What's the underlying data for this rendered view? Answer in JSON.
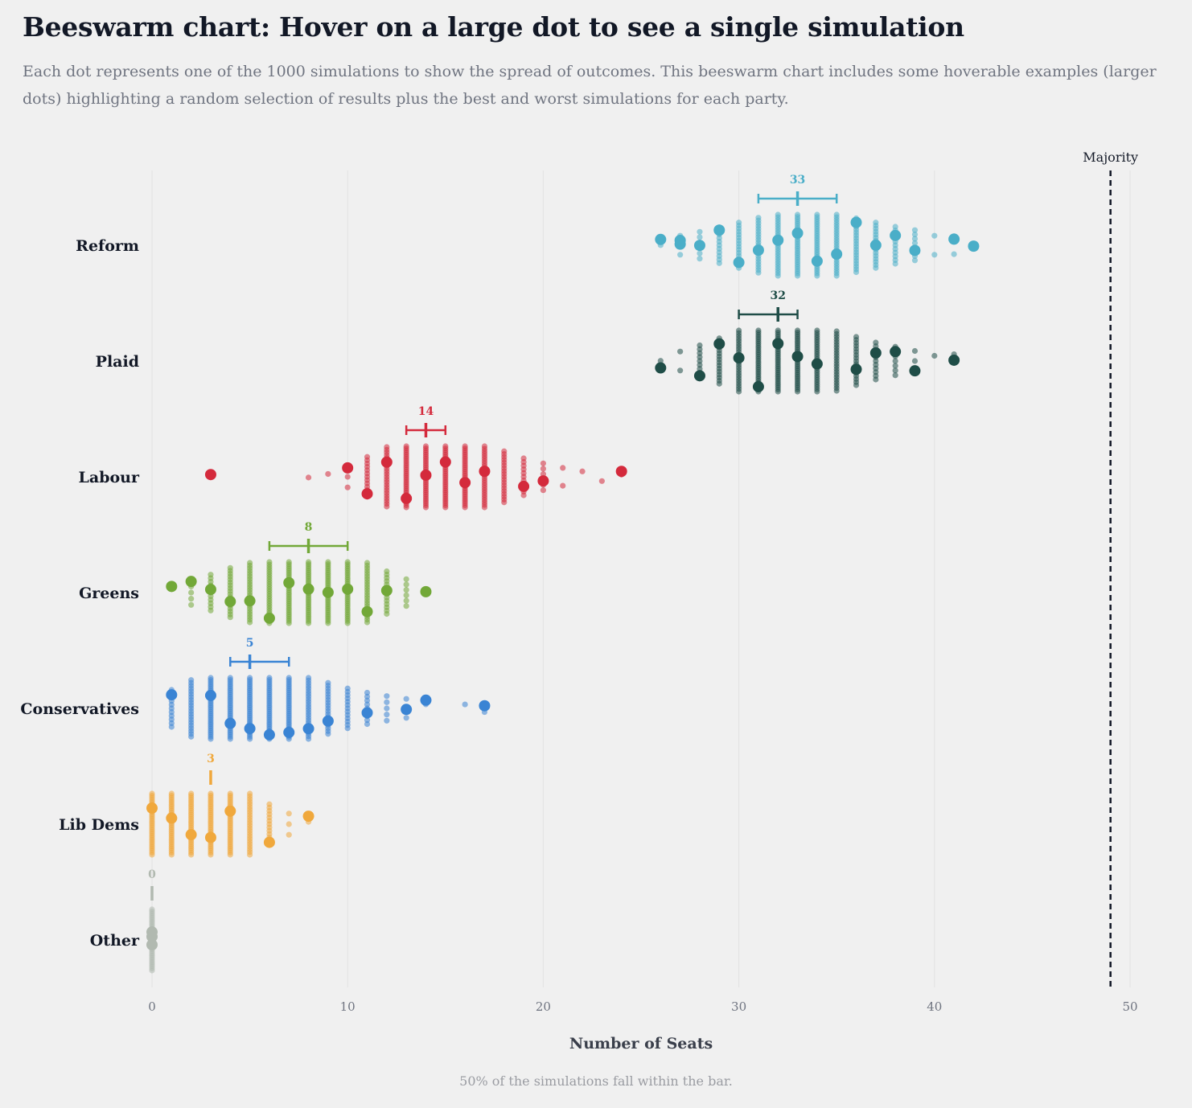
{
  "title": "Beeswarm chart: Hover on a large dot to see a single simulation",
  "subtitle": "Each dot represents one of the 1000 simulations to show the spread of outcomes. This beeswarm chart includes some hoverable examples (larger dots) highlighting a random selection of results plus the best and worst simulations for each party.",
  "footer": "50% of the simulations fall within the bar.",
  "chart_data": {
    "type": "scatter",
    "subtype": "beeswarm",
    "xlabel": "Number of Seats",
    "xlim": [
      0,
      50
    ],
    "xticks": [
      0,
      10,
      20,
      30,
      40,
      50
    ],
    "grid": true,
    "majority": {
      "label": "Majority",
      "value": 49
    },
    "series": [
      {
        "name": "Reform",
        "color": "#4aaec8",
        "median": 33,
        "iqr": [
          31,
          35
        ],
        "counts": {
          "26": 1,
          "27": 8,
          "28": 22,
          "29": 38,
          "30": 55,
          "31": 72,
          "32": 88,
          "33": 98,
          "34": 96,
          "35": 86,
          "36": 70,
          "37": 55,
          "38": 40,
          "39": 28,
          "40": 8,
          "41": 6,
          "42": 1
        },
        "highlights": [
          26,
          27,
          27,
          28,
          29,
          30,
          31,
          32,
          33,
          34,
          35,
          36,
          37,
          38,
          39,
          41,
          42
        ]
      },
      {
        "name": "Plaid",
        "color": "#1f4d47",
        "median": 32,
        "iqr": [
          30,
          33
        ],
        "counts": {
          "26": 2,
          "27": 8,
          "28": 30,
          "29": 55,
          "30": 85,
          "31": 100,
          "32": 110,
          "33": 105,
          "34": 95,
          "35": 80,
          "36": 60,
          "37": 40,
          "38": 25,
          "39": 10,
          "40": 3,
          "41": 1
        },
        "highlights": [
          26,
          28,
          29,
          30,
          31,
          32,
          33,
          34,
          36,
          37,
          38,
          39,
          41
        ]
      },
      {
        "name": "Labour",
        "color": "#d42a3c",
        "median": 14,
        "iqr": [
          13,
          15
        ],
        "counts": {
          "3": 1,
          "8": 1,
          "9": 4,
          "10": 12,
          "11": 45,
          "12": 80,
          "13": 110,
          "14": 130,
          "15": 125,
          "16": 110,
          "17": 90,
          "18": 65,
          "19": 40,
          "20": 22,
          "21": 6,
          "22": 2,
          "23": 2,
          "24": 1
        },
        "highlights": [
          3,
          10,
          11,
          12,
          13,
          14,
          15,
          16,
          17,
          19,
          20,
          24
        ]
      },
      {
        "name": "Greens",
        "color": "#72a838",
        "median": 8,
        "iqr": [
          6,
          10
        ],
        "counts": {
          "1": 1,
          "2": 18,
          "3": 38,
          "4": 62,
          "5": 80,
          "6": 92,
          "7": 100,
          "8": 110,
          "9": 105,
          "10": 100,
          "11": 80,
          "12": 50,
          "13": 22,
          "14": 1
        },
        "highlights": [
          1,
          2,
          3,
          4,
          5,
          6,
          7,
          8,
          9,
          10,
          11,
          12,
          14
        ]
      },
      {
        "name": "Conservatives",
        "color": "#3a84d4",
        "median": 5,
        "iqr": [
          4,
          7
        ],
        "counts": {
          "1": 40,
          "2": 75,
          "3": 105,
          "4": 120,
          "5": 125,
          "6": 120,
          "7": 105,
          "8": 85,
          "9": 65,
          "10": 45,
          "11": 30,
          "12": 18,
          "13": 8,
          "14": 5,
          "16": 1,
          "17": 1
        },
        "highlights": [
          1,
          3,
          4,
          5,
          6,
          7,
          8,
          9,
          11,
          13,
          14,
          17
        ]
      },
      {
        "name": "Lib Dems",
        "color": "#f0a83c",
        "median": 3,
        "iqr": [
          3,
          3
        ],
        "counts": {
          "0": 110,
          "1": 150,
          "2": 185,
          "3": 185,
          "4": 150,
          "5": 85,
          "6": 45,
          "7": 12,
          "8": 3
        },
        "highlights": [
          0,
          1,
          2,
          3,
          4,
          6,
          8
        ]
      },
      {
        "name": "Other",
        "color": "#b1b9b0",
        "median": 0,
        "iqr": [
          0,
          0
        ],
        "counts": {
          "0": 1000
        },
        "highlights": [
          0,
          0,
          0
        ]
      }
    ]
  }
}
